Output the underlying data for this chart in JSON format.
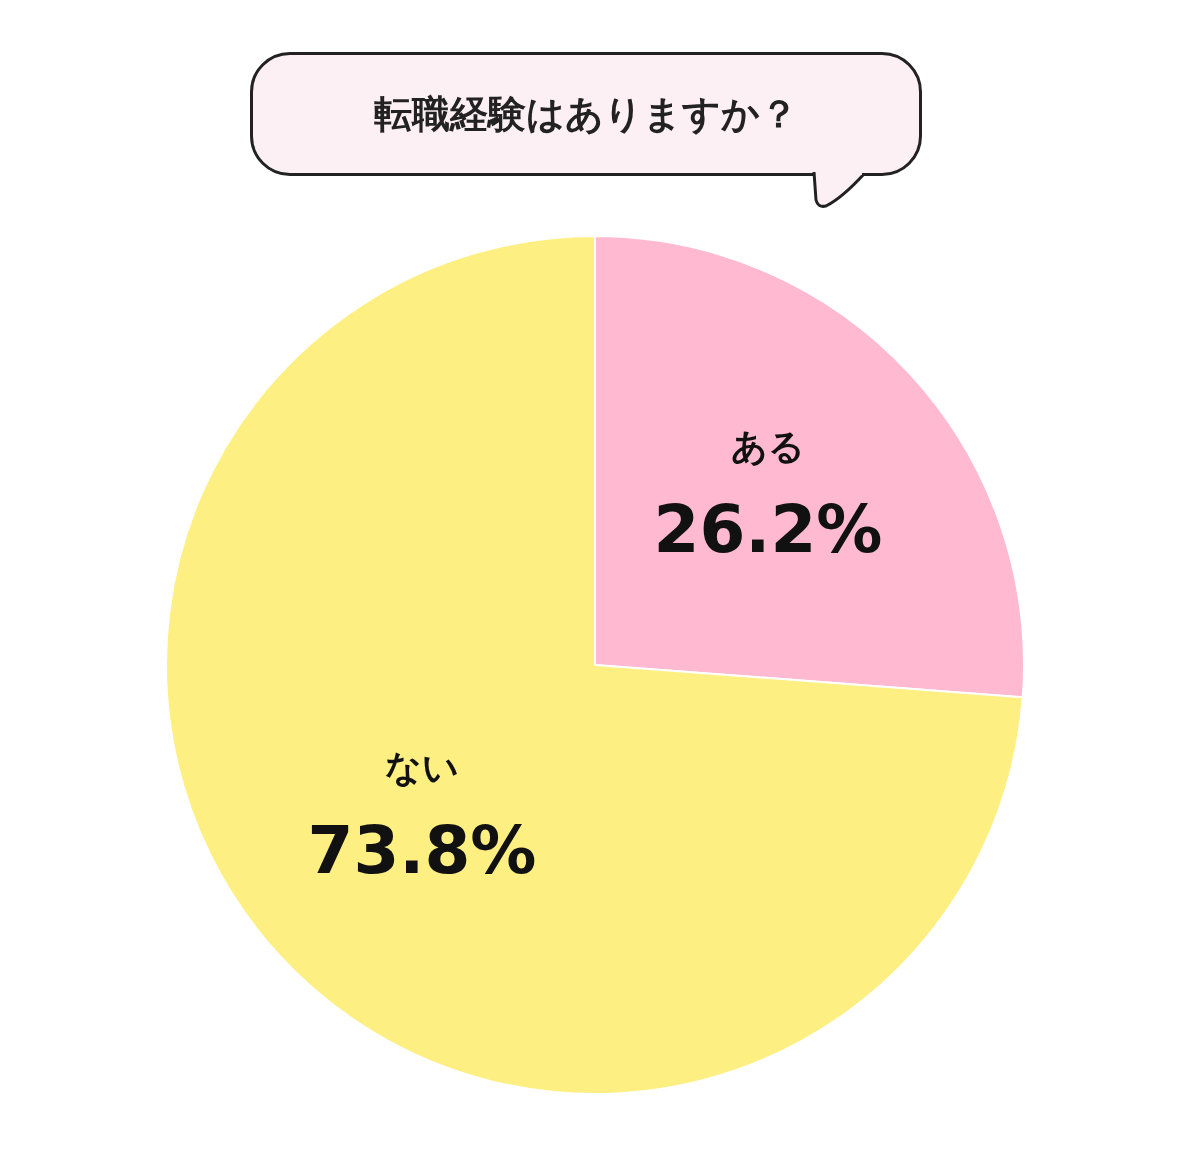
{
  "chart_data": {
    "type": "pie",
    "title": "転職経験はありますか？",
    "categories": [
      "ある",
      "ない"
    ],
    "values": [
      26.2,
      73.8
    ],
    "colors": [
      "#ffbad2",
      "#fdef82"
    ],
    "value_labels": [
      "26.2%",
      "73.8%"
    ],
    "legend": false
  }
}
